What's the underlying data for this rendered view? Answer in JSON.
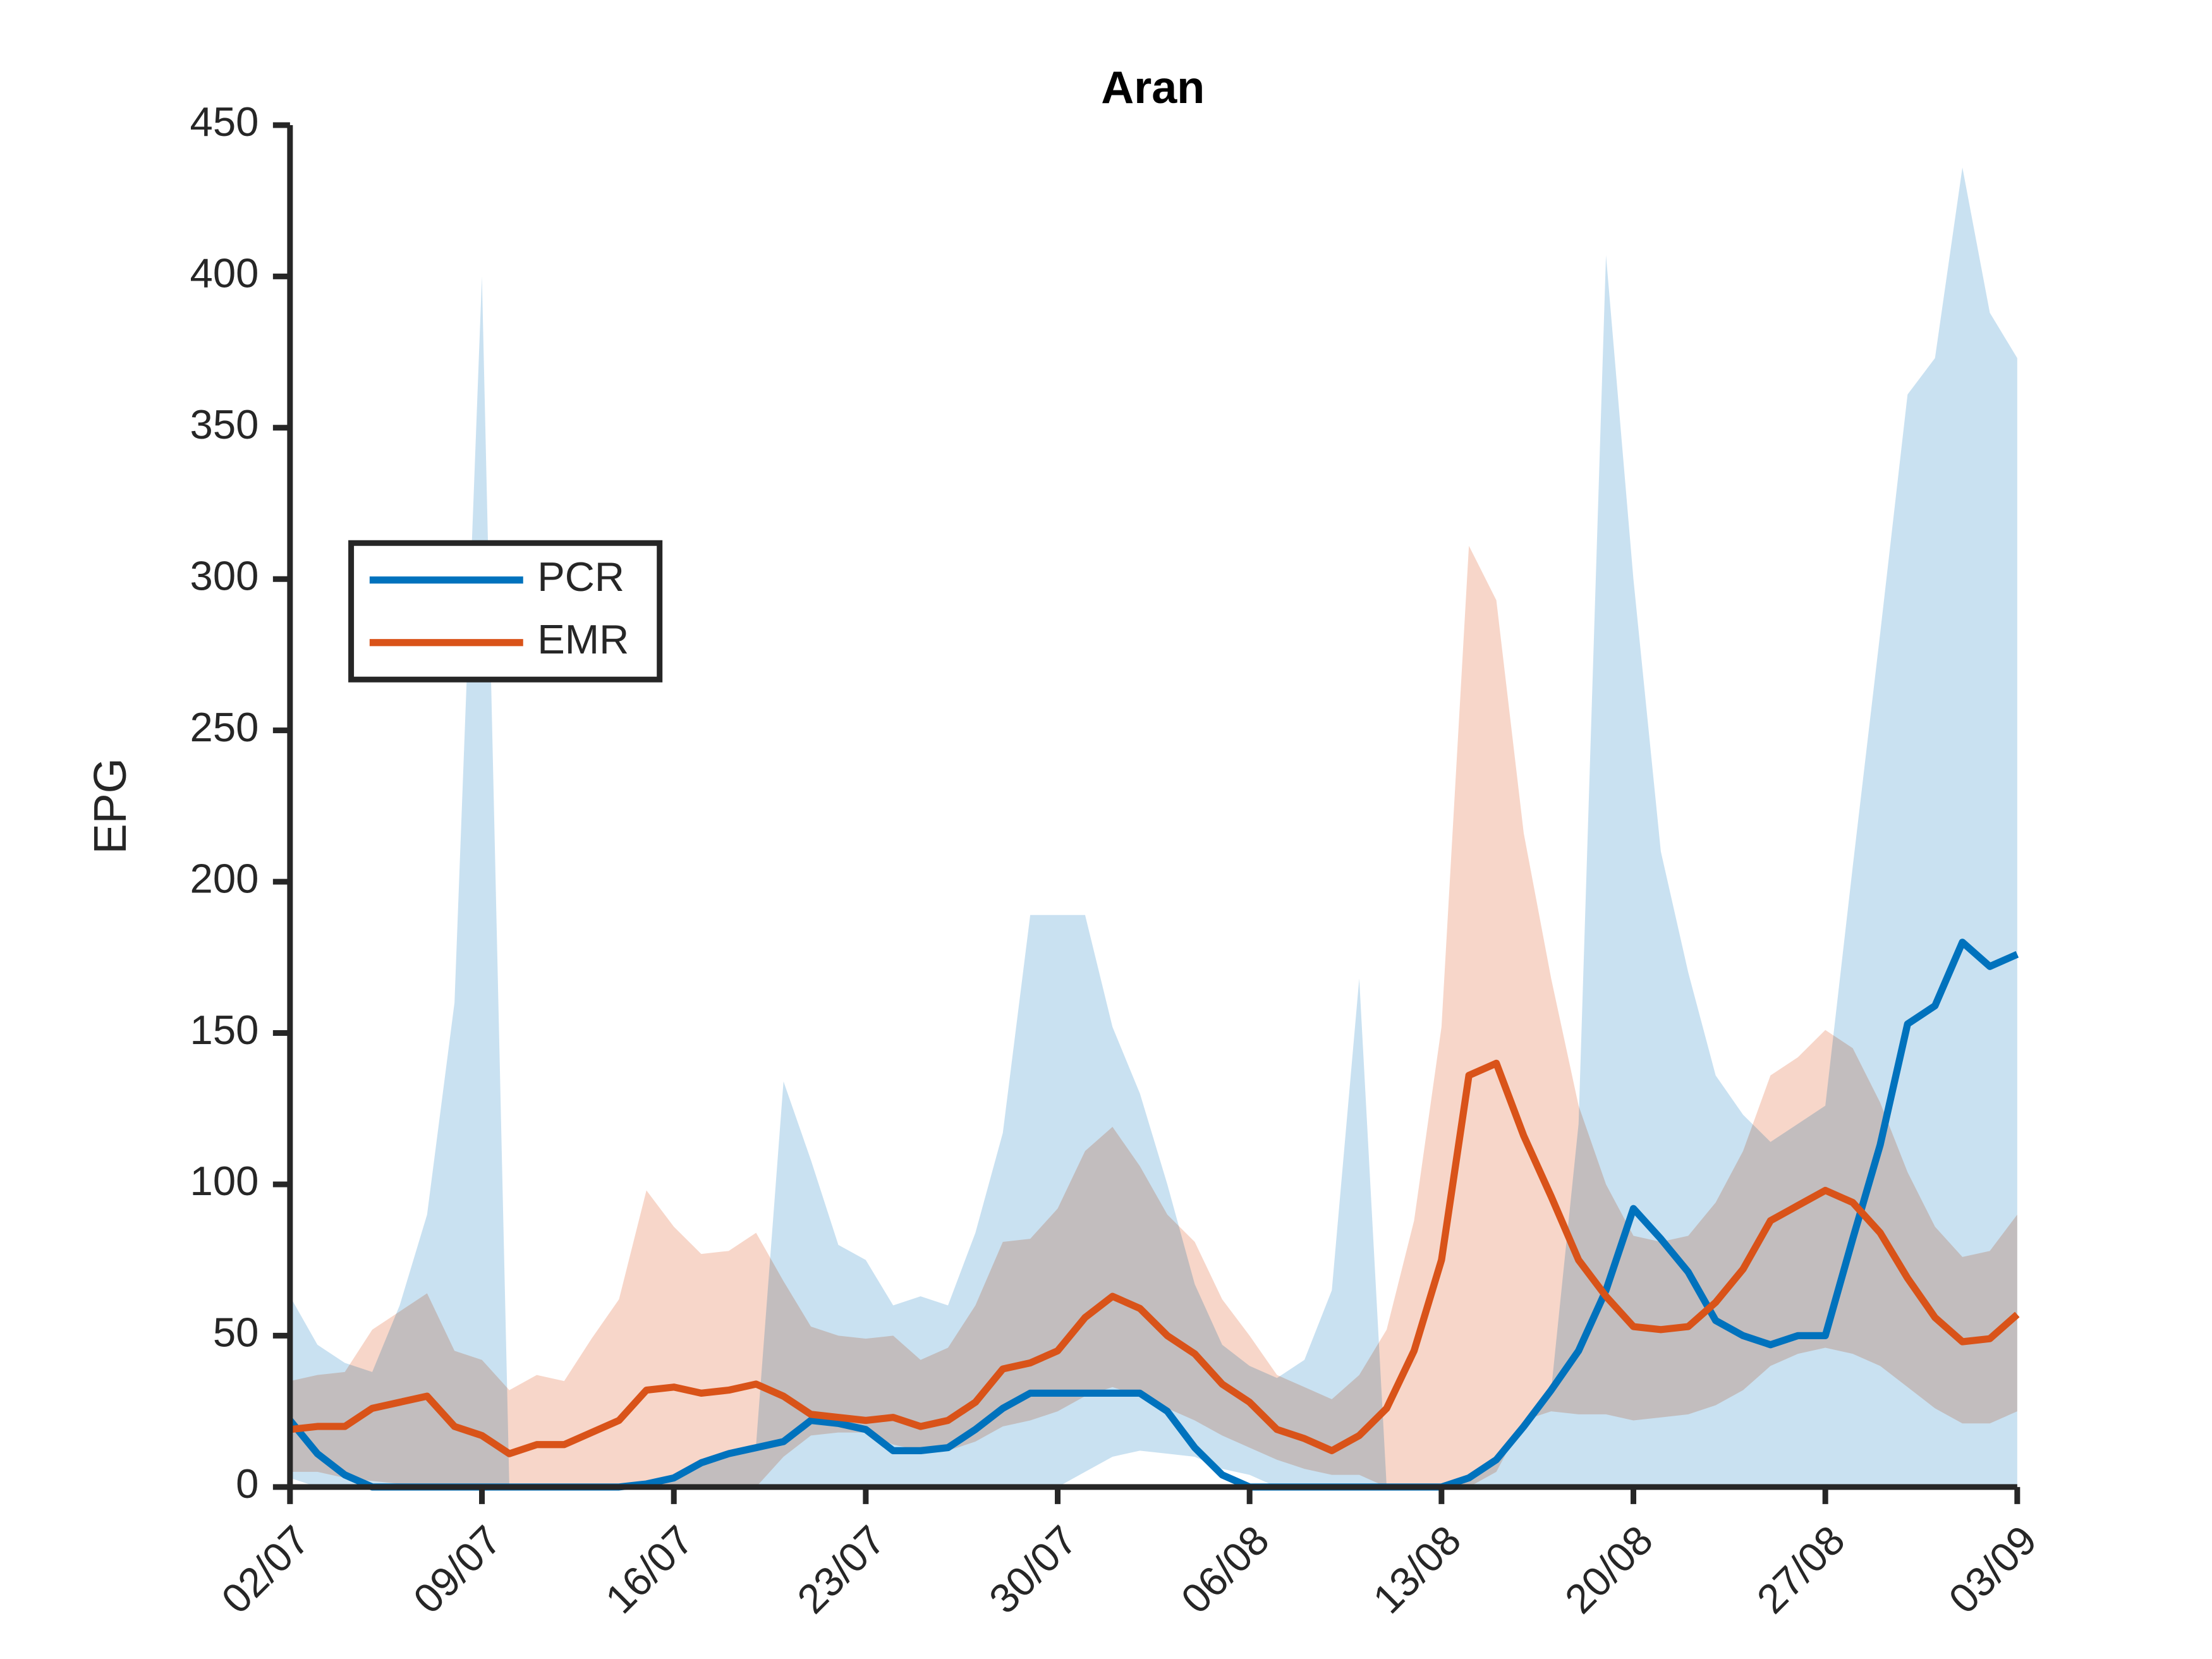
{
  "chart_data": {
    "type": "line",
    "title": "Aran",
    "ylabel": "EPG",
    "x": [
      "02/07",
      "03/07",
      "04/07",
      "05/07",
      "06/07",
      "07/07",
      "08/07",
      "09/07",
      "10/07",
      "11/07",
      "12/07",
      "13/07",
      "14/07",
      "15/07",
      "16/07",
      "17/07",
      "18/07",
      "19/07",
      "20/07",
      "21/07",
      "22/07",
      "23/07",
      "24/07",
      "25/07",
      "26/07",
      "27/07",
      "28/07",
      "29/07",
      "30/07",
      "31/07",
      "01/08",
      "02/08",
      "03/08",
      "04/08",
      "05/08",
      "06/08",
      "07/08",
      "08/08",
      "09/08",
      "10/08",
      "11/08",
      "12/08",
      "13/08",
      "14/08",
      "15/08",
      "16/08",
      "17/08",
      "18/08",
      "19/08",
      "20/08",
      "21/08",
      "22/08",
      "23/08",
      "24/08",
      "25/08",
      "26/08",
      "27/08",
      "28/08",
      "29/08",
      "30/08",
      "31/08",
      "01/09",
      "02/09",
      "03/09"
    ],
    "xticks": [
      "02/07",
      "09/07",
      "16/07",
      "23/07",
      "30/07",
      "06/08",
      "13/08",
      "20/08",
      "27/08",
      "03/09"
    ],
    "ylim": [
      0,
      450
    ],
    "yticks": [
      0,
      50,
      100,
      150,
      200,
      250,
      300,
      350,
      400,
      450
    ],
    "legend": "upper left",
    "series": [
      {
        "name": "PCR",
        "color": "#0072BD",
        "band_color": "#c0dcee",
        "values": [
          22,
          11,
          4,
          0,
          0,
          0,
          0,
          0,
          0,
          0,
          0,
          0,
          0,
          1,
          3,
          8,
          11,
          13,
          15,
          22,
          21,
          19,
          12,
          12,
          13,
          19,
          26,
          31,
          31,
          31,
          31,
          31,
          25,
          13,
          4,
          0,
          0,
          0,
          0,
          0,
          0,
          0,
          0,
          3,
          9,
          20,
          32,
          45,
          65,
          92,
          82,
          71,
          55,
          50,
          47,
          50,
          50,
          82,
          113,
          153,
          159,
          180,
          172,
          176
        ],
        "lower": [
          3,
          0,
          0,
          0,
          0,
          0,
          0,
          0,
          0,
          0,
          0,
          0,
          0,
          0,
          0,
          0,
          0,
          0,
          0,
          0,
          0,
          0,
          0,
          0,
          0,
          0,
          0,
          0,
          0,
          5,
          10,
          12,
          11,
          10,
          6,
          4,
          0,
          0,
          0,
          0,
          0,
          0,
          0,
          0,
          0,
          0,
          0,
          0,
          0,
          0,
          0,
          0,
          0,
          0,
          0,
          0,
          0,
          0,
          0,
          0,
          0,
          0,
          0,
          0
        ],
        "upper": [
          63,
          47,
          41,
          38,
          60,
          90,
          160,
          400,
          0,
          0,
          0,
          0,
          0,
          2,
          4,
          9,
          12,
          14,
          134,
          108,
          80,
          75,
          60,
          63,
          60,
          84,
          117,
          189,
          189,
          189,
          152,
          130,
          100,
          67,
          47,
          40,
          36,
          42,
          65,
          168,
          0,
          0,
          0,
          3,
          9,
          20,
          32,
          120,
          407,
          300,
          210,
          170,
          136,
          123,
          114,
          120,
          126,
          205,
          282,
          361,
          373,
          436,
          388,
          373
        ]
      },
      {
        "name": "EMR",
        "color": "#D95319",
        "band_color": "#f6cfbf",
        "values": [
          19,
          20,
          20,
          26,
          28,
          30,
          20,
          17,
          11,
          14,
          14,
          18,
          22,
          32,
          33,
          31,
          32,
          34,
          30,
          24,
          23,
          22,
          23,
          20,
          22,
          28,
          39,
          41,
          45,
          56,
          63,
          59,
          50,
          44,
          34,
          28,
          19,
          16,
          12,
          17,
          26,
          45,
          75,
          136,
          140,
          116,
          96,
          75,
          63,
          53,
          52,
          53,
          61,
          72,
          88,
          93,
          98,
          94,
          84,
          69,
          56,
          48,
          49,
          57
        ],
        "lower": [
          5,
          5,
          3,
          2,
          1,
          0,
          0,
          0,
          0,
          0,
          0,
          0,
          0,
          0,
          0,
          0,
          0,
          0,
          10,
          17,
          18,
          18,
          14,
          12,
          12,
          15,
          20,
          22,
          25,
          30,
          33,
          30,
          26,
          22,
          17,
          13,
          9,
          6,
          4,
          4,
          0,
          0,
          0,
          0,
          5,
          22,
          25,
          24,
          24,
          22,
          23,
          24,
          27,
          32,
          40,
          44,
          46,
          44,
          40,
          33,
          26,
          21,
          21,
          25
        ],
        "upper": [
          35,
          37,
          38,
          52,
          58,
          64,
          45,
          42,
          32,
          37,
          35,
          49,
          62,
          98,
          86,
          77,
          78,
          84,
          68,
          53,
          50,
          49,
          50,
          42,
          46,
          60,
          81,
          82,
          92,
          111,
          119,
          106,
          90,
          81,
          62,
          50,
          37,
          33,
          29,
          37,
          52,
          88,
          152,
          311,
          293,
          216,
          168,
          126,
          100,
          83,
          81,
          83,
          94,
          111,
          136,
          142,
          151,
          145,
          127,
          104,
          86,
          76,
          78,
          90
        ]
      }
    ]
  }
}
